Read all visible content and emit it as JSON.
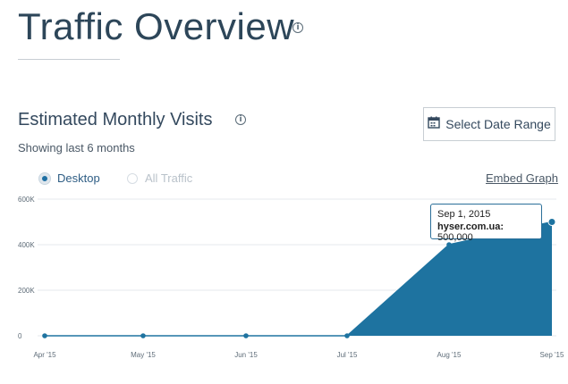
{
  "header": {
    "title": "Traffic Overview",
    "title_info_icon": "info-icon"
  },
  "section": {
    "title": "Estimated Monthly Visits",
    "info_icon": "info-icon",
    "subtitle": "Showing last 6 months"
  },
  "toolbar": {
    "date_range_label": "Select Date Range",
    "date_range_icon": "calendar-icon",
    "embed_label": "Embed Graph"
  },
  "filters": {
    "desktop_label": "Desktop",
    "all_traffic_label": "All Traffic",
    "selected": "Desktop"
  },
  "tooltip": {
    "date": "Sep 1, 2015",
    "series": "hyser.com.ua:",
    "value": "500,000"
  },
  "colors": {
    "area": "#1e73a0",
    "text": "#34495e",
    "grid": "#e6eaed"
  },
  "chart_data": {
    "type": "area",
    "categories": [
      "Apr '15",
      "May '15",
      "Jun '15",
      "Jul '15",
      "Aug '15",
      "Sep '15"
    ],
    "series": [
      {
        "name": "hyser.com.ua",
        "values": [
          0,
          0,
          0,
          0,
          400000,
          500000
        ]
      }
    ],
    "y_ticks": [
      "0",
      "200K",
      "400K",
      "600K"
    ],
    "ylim": [
      0,
      600000
    ],
    "grid": true,
    "legend": "none"
  }
}
